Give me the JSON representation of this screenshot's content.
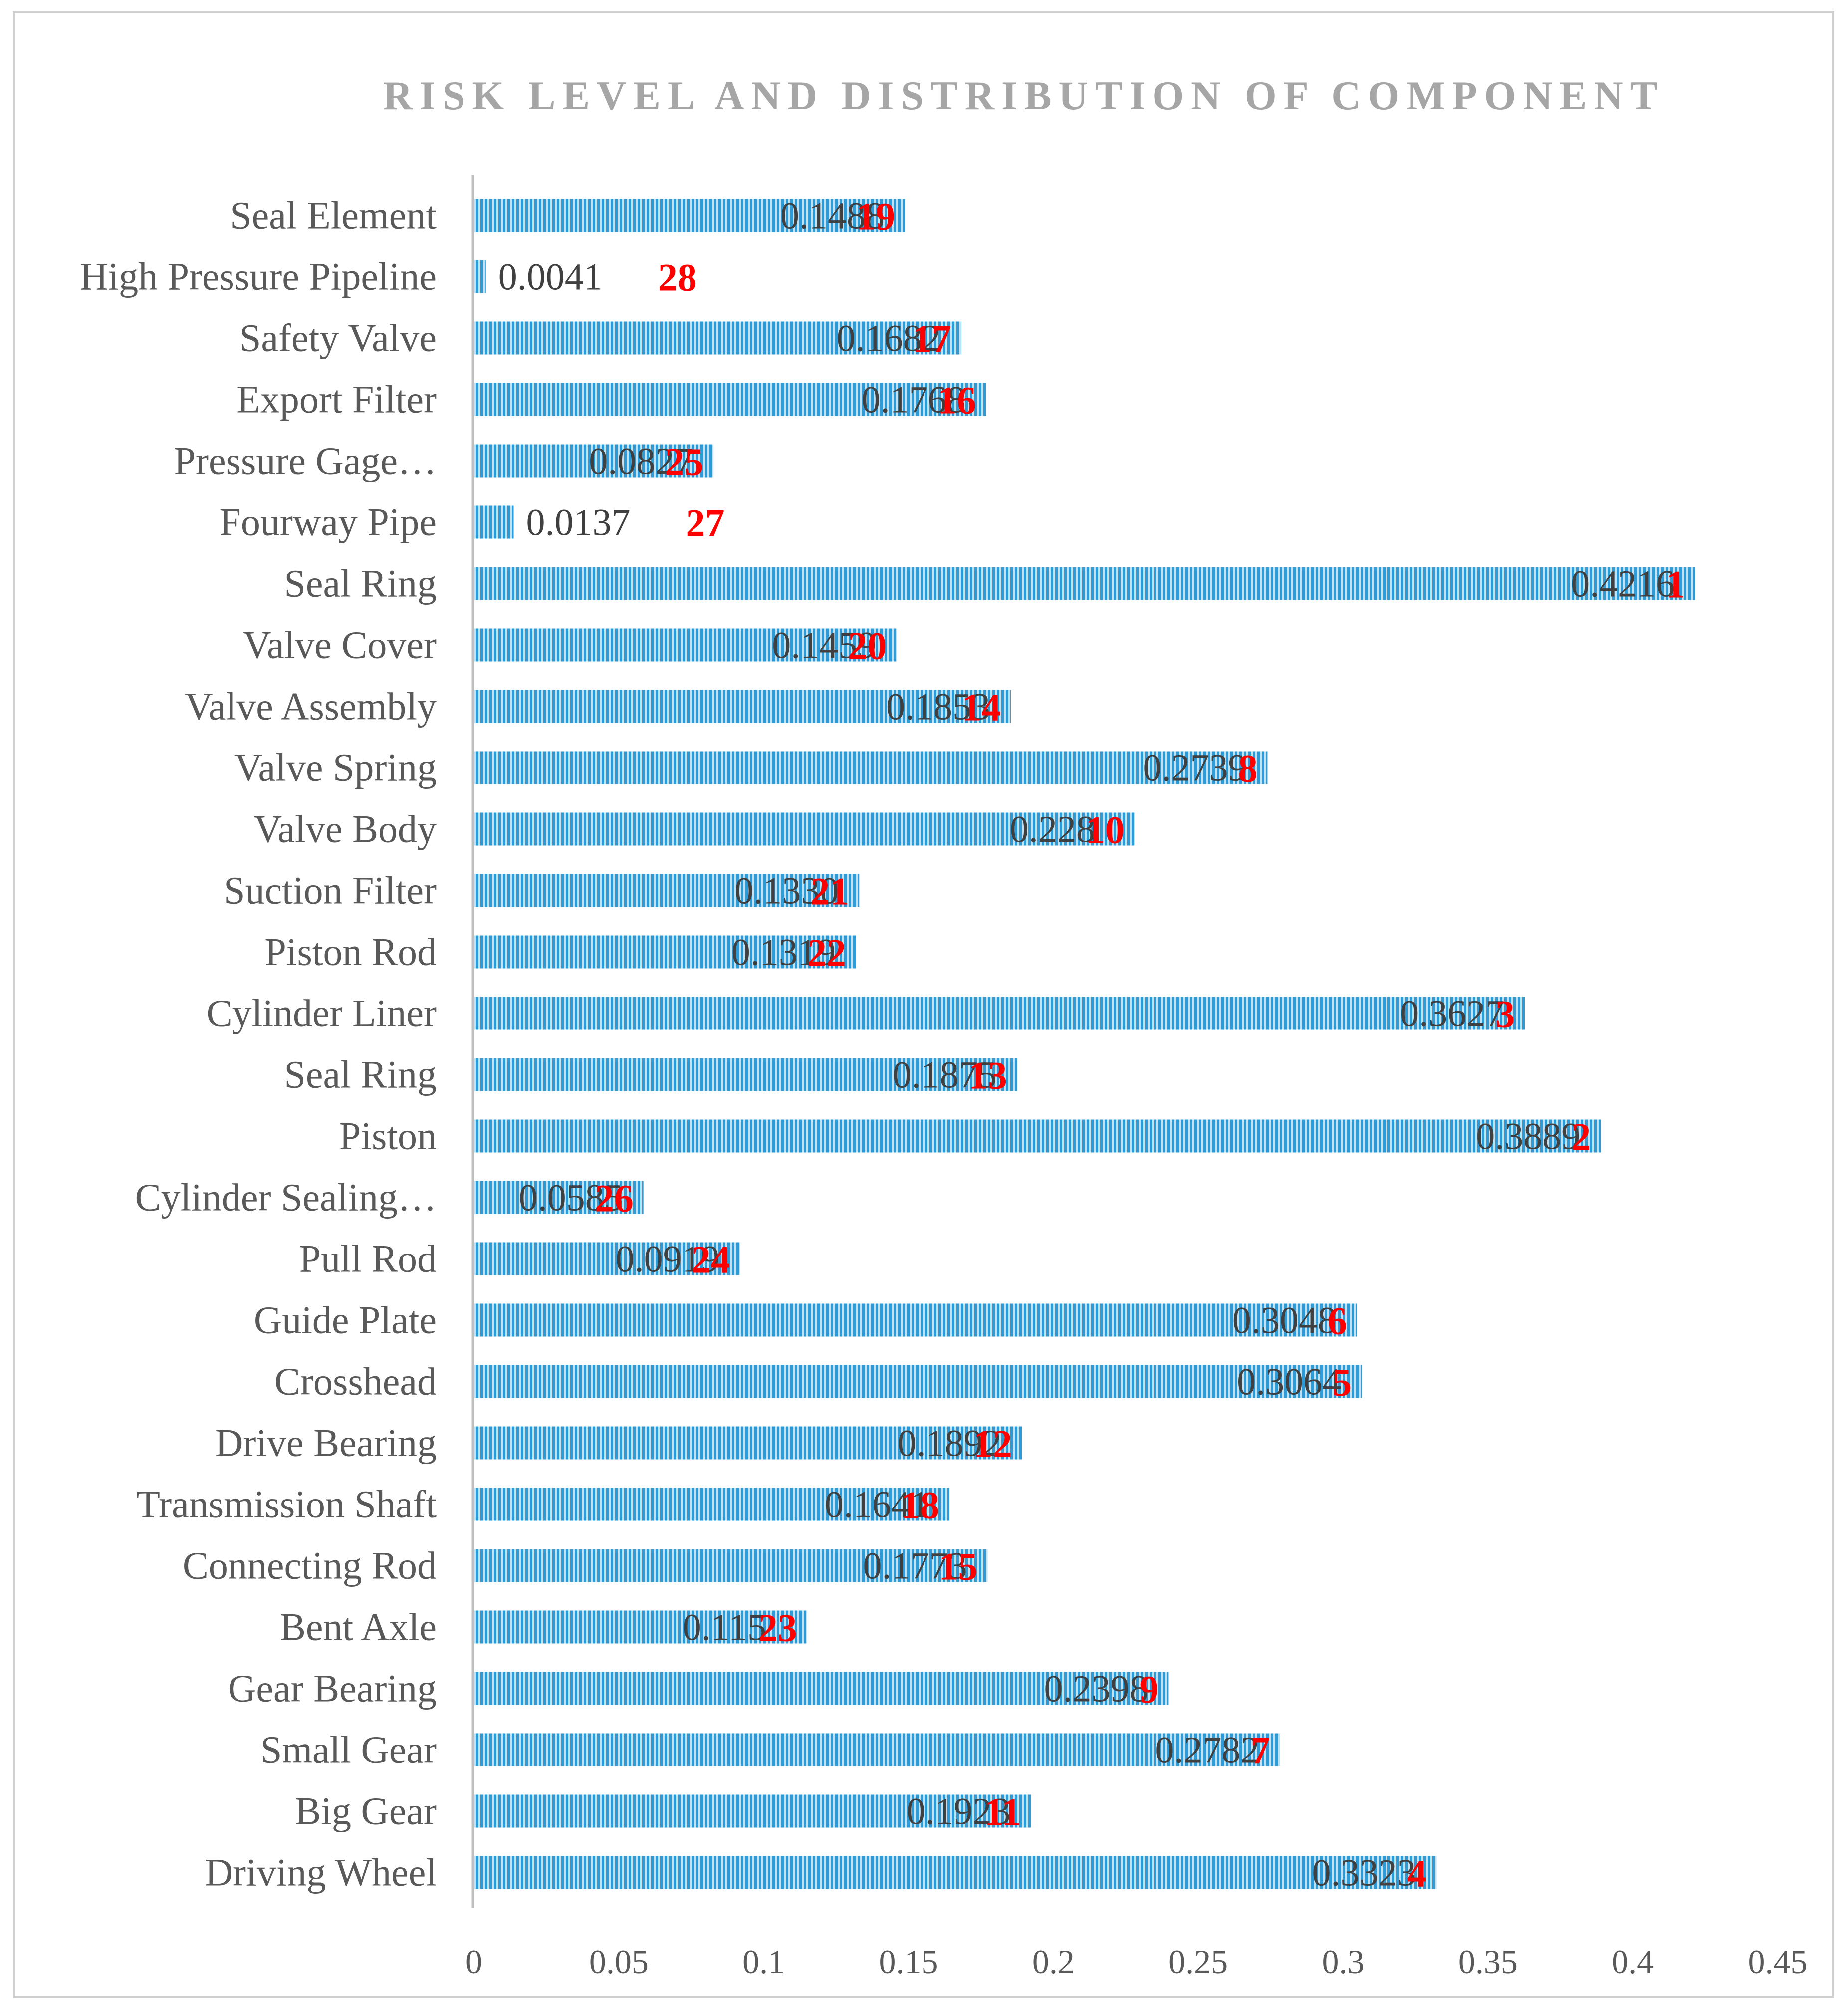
{
  "chart_data": {
    "type": "bar",
    "orientation": "horizontal",
    "title": "RISK LEVEL AND DISTRIBUTION OF COMPONENT",
    "xlabel": "",
    "ylabel": "",
    "xlim": [
      0,
      0.45
    ],
    "x_ticks": [
      "0",
      "0.05",
      "0.1",
      "0.15",
      "0.2",
      "0.25",
      "0.3",
      "0.35",
      "0.4",
      "0.45"
    ],
    "x_tick_values": [
      0,
      0.05,
      0.1,
      0.15,
      0.2,
      0.25,
      0.3,
      0.35,
      0.4,
      0.45
    ],
    "categories": [
      "Seal Element",
      "High Pressure Pipeline",
      "Safety Valve",
      "Export Filter",
      "Pressure Gage…",
      "Fourway Pipe",
      "Seal Ring",
      "Valve Cover",
      "Valve Assembly",
      "Valve Spring",
      "Valve Body",
      "Suction Filter",
      "Piston Rod",
      "Cylinder Liner",
      "Seal Ring",
      "Piston",
      "Cylinder Sealing…",
      "Pull Rod",
      "Guide Plate",
      "Crosshead",
      "Drive Bearing",
      "Transmission Shaft",
      "Connecting Rod",
      "Bent Axle",
      "Gear Bearing",
      "Small Gear",
      "Big Gear",
      "Driving Wheel"
    ],
    "values": [
      0.1488,
      0.0041,
      0.1682,
      0.1768,
      0.0827,
      0.0137,
      0.4216,
      0.1459,
      0.1853,
      0.2739,
      0.228,
      0.133,
      0.1319,
      0.3627,
      0.1875,
      0.3889,
      0.0585,
      0.0919,
      0.3048,
      0.3064,
      0.1892,
      0.1641,
      0.1773,
      0.115,
      0.2398,
      0.2782,
      0.1923,
      0.3323
    ],
    "value_labels": [
      "0.1488",
      "0.0041",
      "0.1682",
      "0.1768",
      "0.0827",
      "0.0137",
      "0.4216",
      "0.1459",
      "0.1853",
      "0.2739",
      "0.228",
      "0.1330",
      "0.1319",
      "0.3627",
      "0.1875",
      "0.3889",
      "0.0585",
      "0.0919",
      "0.3048",
      "0.3064",
      "0.1892",
      "0.1641",
      "0.1773",
      "0.115",
      "0.2398",
      "0.2782",
      "0.1923",
      "0.3323"
    ],
    "ranks": [
      "19",
      "28",
      "17",
      "16",
      "25",
      "27",
      "1",
      "20",
      "14",
      "8",
      "10",
      "21",
      "22",
      "3",
      "13",
      "2",
      "26",
      "24",
      "6",
      "5",
      "12",
      "18",
      "15",
      "23",
      "9",
      "7",
      "11",
      "4"
    ],
    "grid": false,
    "colors": {
      "bar": "#2e9bd6",
      "bar_stripe": "#bfe3f5",
      "rank": "#ff0000",
      "value_label": "#404040",
      "axis": "#bfbfbf",
      "text": "#595959",
      "title": "#a6a6a6"
    }
  }
}
